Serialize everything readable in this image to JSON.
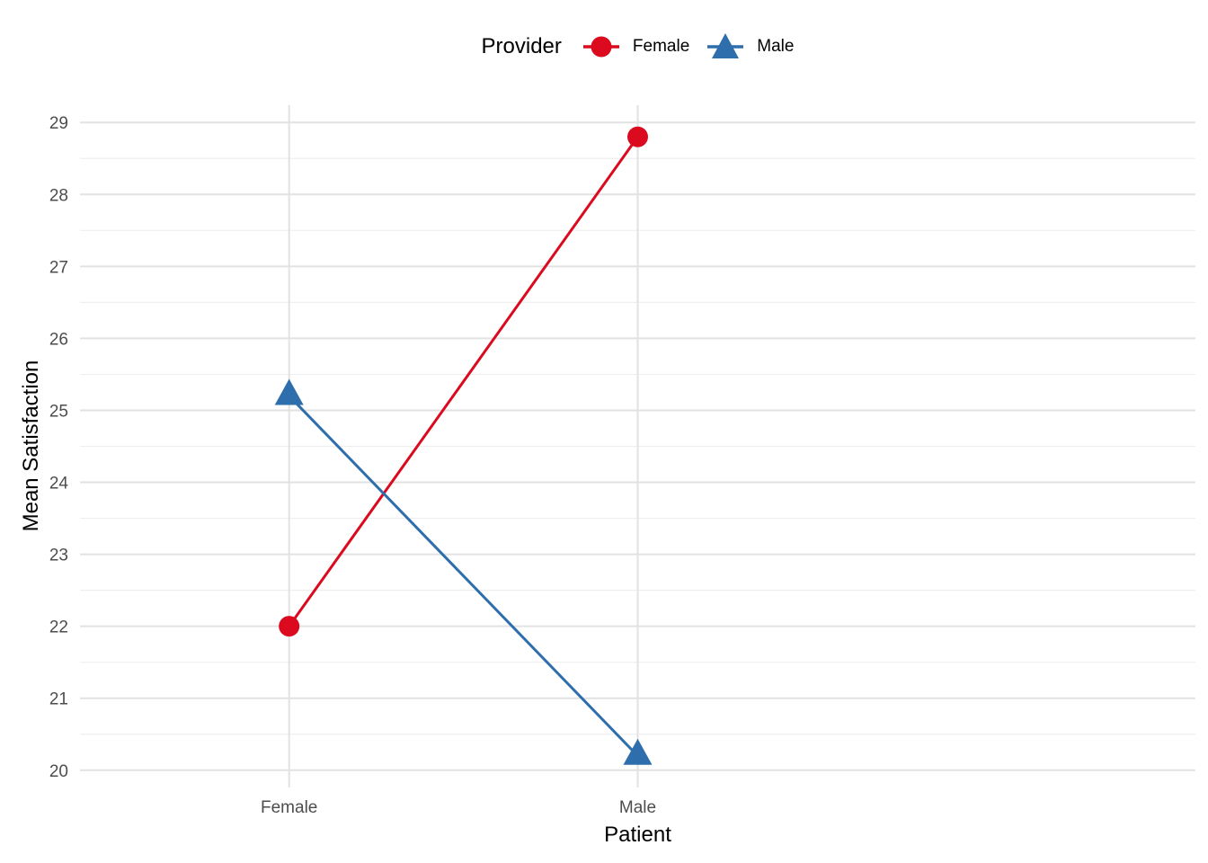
{
  "chart_data": {
    "type": "line",
    "subtype": "interaction-plot",
    "xlabel": "Patient",
    "ylabel": "Mean Satisfaction",
    "categories": [
      "Female",
      "Male"
    ],
    "series": [
      {
        "name": "Female",
        "marker": "circle",
        "color": "#DB0A1E",
        "values": [
          22.0,
          28.8
        ]
      },
      {
        "name": "Male",
        "marker": "triangle",
        "color": "#2F6EAC",
        "values": [
          25.2,
          20.2
        ]
      }
    ],
    "legend": {
      "title": "Provider",
      "position": "top-center"
    },
    "y_axis": {
      "ticks": [
        20,
        21,
        22,
        23,
        24,
        25,
        26,
        27,
        28,
        29
      ],
      "minor_ticks": [
        20.5,
        21.5,
        22.5,
        23.5,
        24.5,
        25.5,
        26.5,
        27.5,
        28.5
      ],
      "ylim": [
        19.76,
        29.24
      ]
    },
    "x_axis": {
      "tick_labels": [
        "Female",
        "Male"
      ]
    },
    "grid": {
      "major": "on",
      "minor": "on"
    }
  },
  "style": {
    "background": "#FFFFFF",
    "grid_major_color": "#E2E2E2",
    "grid_minor_color": "#EFEFEF",
    "tick_label_color": "#4D4D4D",
    "axis_title_color": "#000000",
    "legend_text_color": "#000000"
  }
}
